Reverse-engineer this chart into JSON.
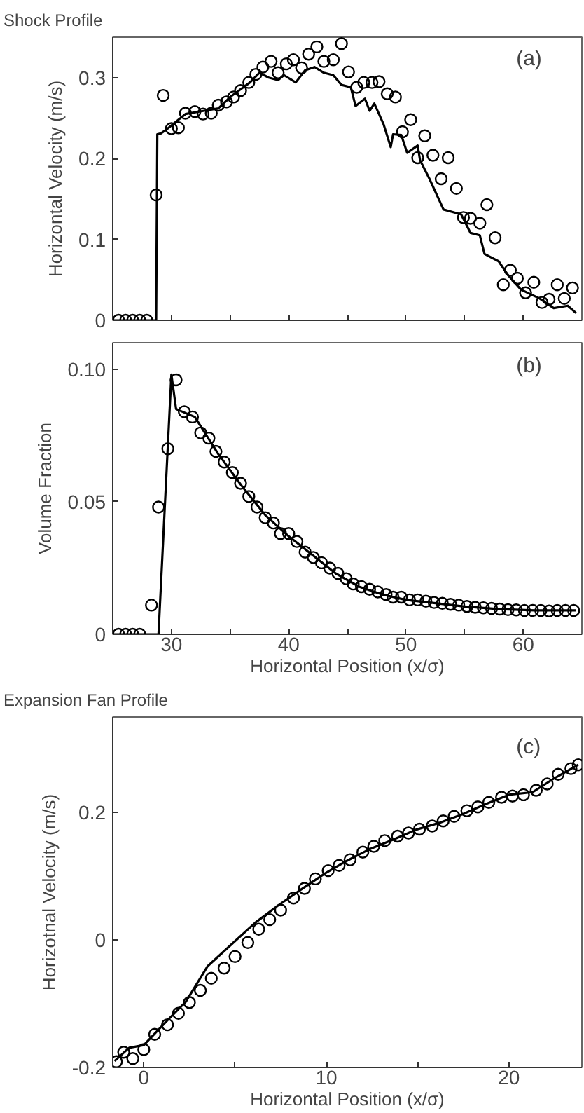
{
  "chart_data": [
    {
      "type": "line",
      "title": "Shock Profile",
      "ylabel": "Horizontal Velocity (m/s)",
      "annotations": [
        "(a)"
      ],
      "xlim": [
        25,
        65
      ],
      "ylim": [
        0,
        0.35
      ],
      "xticks": [
        30,
        {
          "value": 35,
          "label": null
        },
        40,
        {
          "value": 45,
          "label": null
        },
        50,
        {
          "value": 55,
          "label": null
        },
        60
      ],
      "yticks": [
        0,
        0.1,
        0.2,
        0.3
      ],
      "tick_labels": "y",
      "grid": false,
      "series": [
        {
          "color": "#000000",
          "line_style": "solid",
          "x": [
            25,
            28.7,
            28.8,
            29.1,
            29.6,
            31.2,
            32.8,
            34.0,
            35.1,
            36.7,
            37.5,
            38.3,
            39.1,
            39.6,
            40.6,
            41.4,
            42.2,
            43.0,
            43.8,
            44.5,
            45.3,
            45.7,
            46.5,
            46.9,
            47.3,
            48.1,
            48.7,
            48.9,
            49.6,
            50.1,
            51.0,
            51.2,
            52.0,
            53.2,
            54.2,
            54.7,
            55.5,
            56.3,
            56.7,
            57.9,
            58.7,
            59.8,
            61.4,
            62.6,
            63.8,
            64.5
          ],
          "values": [
            0,
            0,
            0.23,
            0.231,
            0.236,
            0.255,
            0.259,
            0.262,
            0.277,
            0.294,
            0.306,
            0.3,
            0.297,
            0.303,
            0.294,
            0.309,
            0.313,
            0.306,
            0.303,
            0.291,
            0.288,
            0.265,
            0.274,
            0.259,
            0.268,
            0.242,
            0.214,
            0.23,
            0.229,
            0.207,
            0.216,
            0.198,
            0.175,
            0.137,
            0.133,
            0.131,
            0.108,
            0.105,
            0.082,
            0.073,
            0.056,
            0.038,
            0.027,
            0.015,
            0.018,
            0.009
          ]
        },
        {
          "type": "scatter",
          "color": "#000000",
          "marker": "circle",
          "x": [
            25.5,
            26.1,
            26.7,
            27.3,
            27.9,
            28.7,
            29.3,
            30.0,
            30.6,
            31.2,
            32.0,
            32.7,
            33.4,
            34.0,
            34.7,
            35.3,
            35.9,
            36.6,
            37.2,
            37.8,
            38.5,
            39.1,
            39.8,
            40.4,
            41.1,
            41.7,
            42.4,
            43.0,
            43.8,
            44.5,
            45.1,
            45.8,
            46.4,
            47.1,
            47.7,
            48.4,
            49.1,
            49.7,
            50.4,
            51.0,
            51.6,
            52.3,
            53.0,
            53.6,
            54.3,
            54.9,
            55.5,
            56.3,
            56.9,
            57.6,
            58.3,
            58.9,
            59.5,
            60.2,
            60.9,
            61.6,
            62.2,
            62.9,
            63.5,
            64.2
          ],
          "values": [
            0,
            0,
            0,
            0,
            0,
            0.155,
            0.278,
            0.237,
            0.238,
            0.256,
            0.258,
            0.255,
            0.256,
            0.266,
            0.27,
            0.276,
            0.284,
            0.294,
            0.304,
            0.313,
            0.32,
            0.306,
            0.317,
            0.322,
            0.312,
            0.329,
            0.338,
            0.32,
            0.322,
            0.342,
            0.307,
            0.288,
            0.294,
            0.294,
            0.295,
            0.28,
            0.276,
            0.233,
            0.248,
            0.201,
            0.228,
            0.204,
            0.175,
            0.201,
            0.163,
            0.127,
            0.126,
            0.12,
            0.143,
            0.102,
            0.044,
            0.062,
            0.052,
            0.034,
            0.047,
            0.022,
            0.026,
            0.044,
            0.027,
            0.04
          ]
        }
      ]
    },
    {
      "type": "line",
      "xlabel": "Horizontal Position (x/σ)",
      "ylabel": "Volume Fraction",
      "annotations": [
        "(b)"
      ],
      "xlim": [
        25,
        65
      ],
      "ylim": [
        0,
        0.11
      ],
      "xticks": [
        30,
        {
          "value": 35,
          "label": null
        },
        40,
        {
          "value": 45,
          "label": null
        },
        50,
        {
          "value": 55,
          "label": null
        },
        60
      ],
      "yticks": [
        0,
        0.05,
        {
          "value": 0.1,
          "label": "0.10"
        }
      ],
      "grid": false,
      "series": [
        {
          "color": "#000000",
          "line_style": "solid",
          "x": [
            25,
            28.9,
            30.0,
            30.4,
            32,
            34,
            36,
            38,
            40,
            42,
            44,
            46,
            48,
            50,
            52,
            55,
            58,
            61,
            64.5
          ],
          "values": [
            0,
            0,
            0.098,
            0.085,
            0.082,
            0.068,
            0.056,
            0.045,
            0.037,
            0.03,
            0.023,
            0.018,
            0.015,
            0.013,
            0.012,
            0.0105,
            0.0095,
            0.009,
            0.009
          ]
        },
        {
          "type": "scatter",
          "color": "#000000",
          "marker": "circle",
          "x": [
            25.5,
            26.1,
            26.7,
            27.3,
            28.3,
            28.9,
            29.7,
            30.4,
            31.1,
            31.8,
            32.5,
            33.2,
            33.8,
            34.5,
            35.2,
            35.9,
            36.6,
            37.3,
            38.0,
            38.7,
            39.3,
            40.0,
            40.7,
            41.4,
            42.1,
            42.8,
            43.5,
            44.2,
            44.9,
            45.5,
            46.2,
            46.9,
            47.6,
            48.3,
            48.9,
            49.6,
            50.3,
            51.0,
            51.7,
            52.4,
            53.1,
            53.8,
            54.5,
            55.2,
            55.9,
            56.6,
            57.3,
            58.0,
            58.7,
            59.4,
            60.1,
            60.8,
            61.5,
            62.2,
            62.9,
            63.6,
            64.3
          ],
          "values": [
            0,
            0,
            0,
            0,
            0.011,
            0.048,
            0.07,
            0.096,
            0.084,
            0.082,
            0.076,
            0.074,
            0.069,
            0.065,
            0.061,
            0.057,
            0.052,
            0.048,
            0.044,
            0.042,
            0.038,
            0.038,
            0.035,
            0.031,
            0.029,
            0.027,
            0.025,
            0.023,
            0.021,
            0.019,
            0.018,
            0.017,
            0.016,
            0.015,
            0.014,
            0.014,
            0.013,
            0.013,
            0.0125,
            0.012,
            0.0117,
            0.0113,
            0.011,
            0.0105,
            0.0102,
            0.01,
            0.0098,
            0.0095,
            0.0093,
            0.0092,
            0.009,
            0.009,
            0.009,
            0.0088,
            0.009,
            0.009,
            0.009
          ]
        }
      ]
    },
    {
      "type": "line",
      "title": "Expansion Fan Profile",
      "xlabel": "Horizontal Position (x/σ)",
      "ylabel": "Horizotnal Velocity (m/s)",
      "annotations": [
        "(c)"
      ],
      "xlim": [
        -1.7,
        24
      ],
      "ylim": [
        -0.2,
        0.35
      ],
      "xticks": [
        0,
        {
          "value": 5,
          "label": null
        },
        10,
        {
          "value": 15,
          "label": null
        },
        20
      ],
      "yticks": [
        -0.2,
        0,
        0.2
      ],
      "grid": false,
      "series": [
        {
          "color": "#000000",
          "line_style": "solid",
          "x": [
            -1.6,
            -0.8,
            0,
            1.3,
            2.3,
            3.5,
            4.8,
            6.1,
            7.3,
            8.6,
            9.9,
            11.1,
            12.4,
            13.7,
            14.9,
            16.2,
            17.5,
            18.7,
            20.0,
            21.3,
            22.5,
            23.8
          ],
          "values": [
            -0.19,
            -0.169,
            -0.165,
            -0.126,
            -0.097,
            -0.041,
            -0.007,
            0.027,
            0.053,
            0.079,
            0.104,
            0.124,
            0.143,
            0.158,
            0.173,
            0.184,
            0.198,
            0.213,
            0.228,
            0.232,
            0.254,
            0.275
          ]
        },
        {
          "type": "scatter",
          "color": "#000000",
          "marker": "circle",
          "x": [
            -1.5,
            -1.1,
            -0.6,
            0,
            0.6,
            1.3,
            1.9,
            2.5,
            3.1,
            3.7,
            4.4,
            5.0,
            5.7,
            6.3,
            6.9,
            7.5,
            8.2,
            8.8,
            9.4,
            10.1,
            10.7,
            11.3,
            12.0,
            12.6,
            13.2,
            13.9,
            14.5,
            15.1,
            15.8,
            16.4,
            17.0,
            17.7,
            18.3,
            18.9,
            19.6,
            20.2,
            20.8,
            21.5,
            22.1,
            22.7,
            23.4,
            23.8
          ],
          "values": [
            -0.191,
            -0.176,
            -0.186,
            -0.172,
            -0.148,
            -0.133,
            -0.115,
            -0.098,
            -0.079,
            -0.06,
            -0.044,
            -0.026,
            -0.004,
            0.017,
            0.032,
            0.047,
            0.066,
            0.081,
            0.096,
            0.109,
            0.117,
            0.126,
            0.138,
            0.147,
            0.156,
            0.163,
            0.168,
            0.174,
            0.179,
            0.187,
            0.194,
            0.203,
            0.209,
            0.216,
            0.224,
            0.226,
            0.228,
            0.235,
            0.245,
            0.26,
            0.269,
            0.275
          ]
        }
      ]
    }
  ]
}
